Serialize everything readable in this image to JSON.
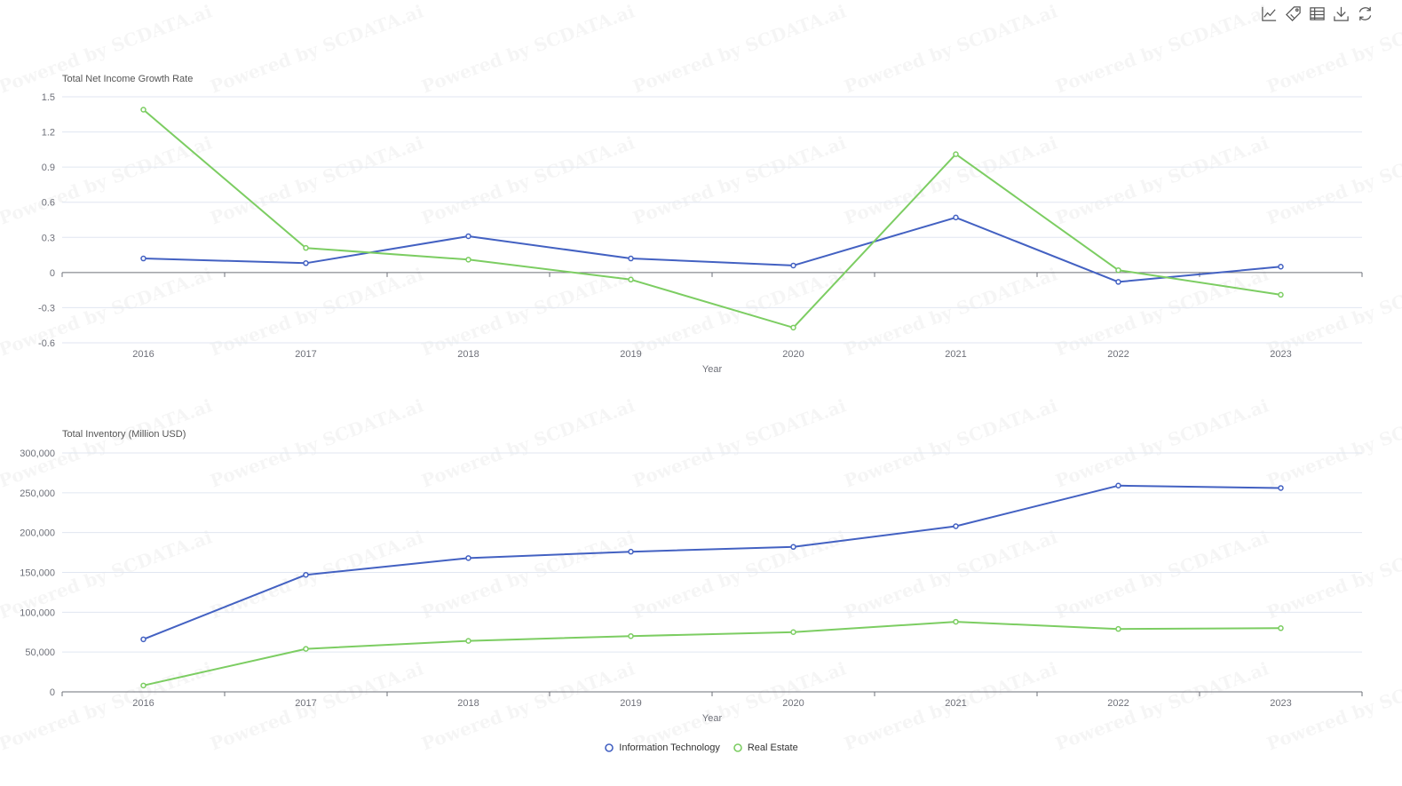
{
  "toolbox": [
    {
      "name": "line-chart-icon"
    },
    {
      "name": "tag-icon"
    },
    {
      "name": "data-table-icon"
    },
    {
      "name": "download-icon"
    },
    {
      "name": "refresh-icon"
    }
  ],
  "watermark": "Powered by SCDATA.ai",
  "legend": [
    {
      "name": "Information Technology",
      "color": "#4361c2"
    },
    {
      "name": "Real Estate",
      "color": "#7ccd62"
    }
  ],
  "chart_data": [
    {
      "type": "line",
      "title": "Total Net Income Growth Rate",
      "xlabel": "Year",
      "ylabel": "Total Net Income Growth Rate",
      "categories": [
        "2016",
        "2017",
        "2018",
        "2019",
        "2020",
        "2021",
        "2022",
        "2023"
      ],
      "ylim": [
        -0.6,
        1.5
      ],
      "yticks": [
        "1.5",
        "1.2",
        "0.9",
        "0.6",
        "0.3",
        "0",
        "-0.3",
        "-0.6"
      ],
      "grid": true,
      "series": [
        {
          "name": "Information Technology",
          "color": "#4361c2",
          "values": [
            0.12,
            0.08,
            0.31,
            0.12,
            0.06,
            0.47,
            -0.08,
            0.05
          ]
        },
        {
          "name": "Real Estate",
          "color": "#7ccd62",
          "values": [
            1.39,
            0.21,
            0.11,
            -0.06,
            -0.47,
            1.01,
            0.02,
            -0.19
          ]
        }
      ]
    },
    {
      "type": "line",
      "title": "Total Inventory (Million USD)",
      "xlabel": "Year",
      "ylabel": "Total Inventory (Million USD)",
      "categories": [
        "2016",
        "2017",
        "2018",
        "2019",
        "2020",
        "2021",
        "2022",
        "2023"
      ],
      "ylim": [
        0,
        300000
      ],
      "yticks": [
        "300,000",
        "250,000",
        "200,000",
        "150,000",
        "100,000",
        "50,000",
        "0"
      ],
      "grid": true,
      "series": [
        {
          "name": "Information Technology",
          "color": "#4361c2",
          "values": [
            66000,
            147000,
            168000,
            176000,
            182000,
            208000,
            259000,
            256000
          ]
        },
        {
          "name": "Real Estate",
          "color": "#7ccd62",
          "values": [
            8000,
            54000,
            64000,
            70000,
            75000,
            88000,
            79000,
            80000
          ]
        }
      ]
    }
  ]
}
